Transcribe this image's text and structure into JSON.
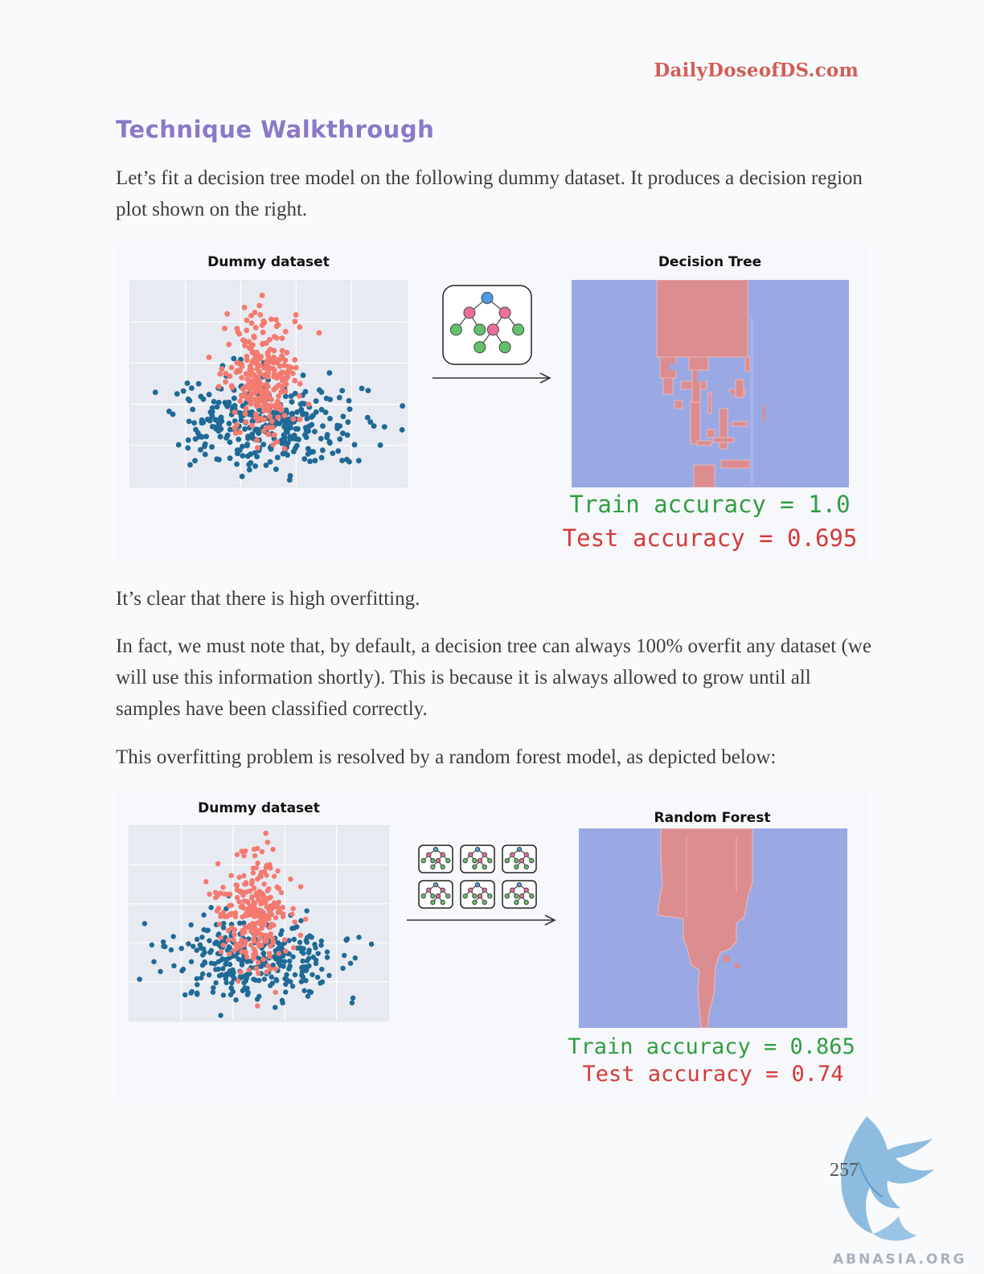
{
  "header": {
    "site": "DailyDoseofDS.com"
  },
  "section": {
    "title": "Technique Walkthrough"
  },
  "paragraphs": {
    "p1": "Let’s fit a decision tree model on the following dummy dataset. It produces a decision region plot shown on the right.",
    "p2": "It’s clear that there is high overfitting.",
    "p3": "In fact, we must note that, by default, a decision tree can always 100% overfit any dataset (we will use this information shortly). This is because it is always allowed to grow until all samples have been classified correctly.",
    "p4": "This overfitting problem is resolved by a random forest model, as depicted below:"
  },
  "figures": {
    "fig1": {
      "dataset_title": "Dummy dataset",
      "model_title": "Decision Tree",
      "train_accuracy": "Train accuracy = 1.0",
      "test_accuracy": "Test accuracy = 0.695",
      "icon": "decision-tree-icon"
    },
    "fig2": {
      "dataset_title": "Dummy dataset",
      "model_title": "Random Forest",
      "train_accuracy": "Train accuracy = 0.865",
      "test_accuracy": "Test accuracy = 0.74",
      "icon": "random-forest-icon"
    }
  },
  "colors": {
    "class_a": "#1f6a96",
    "class_b": "#f47a6f",
    "region_a": "#9aa9e3",
    "region_b": "#dc8d90",
    "heading": "#8b78c9",
    "site": "#d25d56"
  },
  "footer": {
    "page_number": "257",
    "watermark": "ABNASIA.ORG"
  }
}
